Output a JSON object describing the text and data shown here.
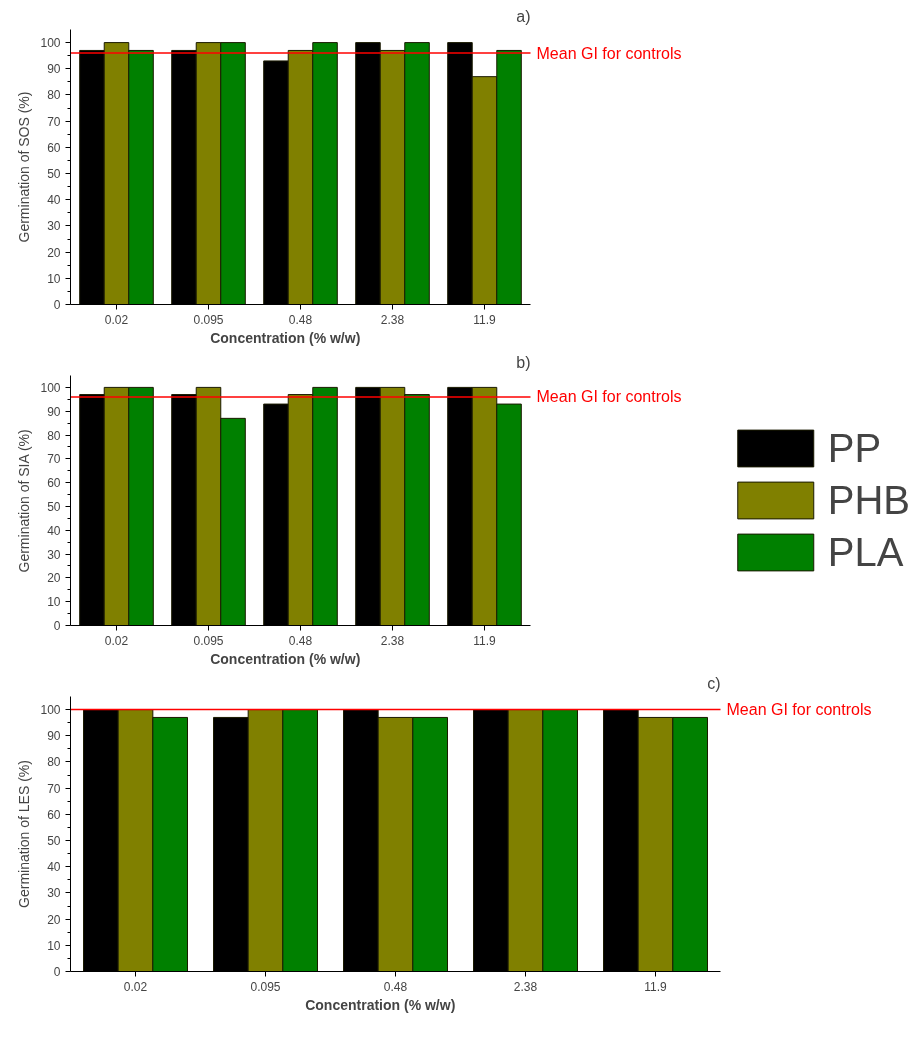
{
  "chart_data": [
    {
      "type": "bar",
      "title": "a)",
      "xlabel": "Concentration (% w/w)",
      "ylabel": "Germination of SOS (%)",
      "categories": [
        "0.02",
        "0.095",
        "0.48",
        "2.38",
        "11.9"
      ],
      "ylim": [
        0,
        105
      ],
      "yticks": [
        0,
        10,
        20,
        30,
        40,
        50,
        60,
        70,
        80,
        90,
        100
      ],
      "grid": false,
      "legend": false,
      "series": [
        {
          "color": "#000000",
          "values": [
            97,
            97,
            93,
            100,
            100
          ]
        },
        {
          "color": "#808000",
          "values": [
            100,
            100,
            97,
            97,
            87
          ]
        },
        {
          "color": "#008000",
          "values": [
            97,
            100,
            100,
            100,
            97
          ]
        }
      ],
      "ref_lines": [
        {
          "axis": "y",
          "value": 96,
          "label": "Mean GI for controls",
          "color": "#ff0000"
        }
      ]
    },
    {
      "type": "bar",
      "title": "b)",
      "xlabel": "Concentration (% w/w)",
      "ylabel": "Germination of SIA (%)",
      "categories": [
        "0.02",
        "0.095",
        "0.48",
        "2.38",
        "11.9"
      ],
      "ylim": [
        0,
        105
      ],
      "yticks": [
        0,
        10,
        20,
        30,
        40,
        50,
        60,
        70,
        80,
        90,
        100
      ],
      "grid": false,
      "legend": "right",
      "series": [
        {
          "name": "PP",
          "color": "#000000",
          "values": [
            97,
            97,
            93,
            100,
            100
          ]
        },
        {
          "name": "PHB",
          "color": "#808000",
          "values": [
            100,
            100,
            97,
            100,
            100
          ]
        },
        {
          "name": "PLA",
          "color": "#008000",
          "values": [
            100,
            87,
            100,
            97,
            93
          ]
        }
      ],
      "ref_lines": [
        {
          "axis": "y",
          "value": 96,
          "label": "Mean GI for controls",
          "color": "#ff0000"
        }
      ]
    },
    {
      "type": "bar",
      "title": "c)",
      "xlabel": "Concentration (% w/w)",
      "ylabel": "Germination of LES (%)",
      "categories": [
        "0.02",
        "0.095",
        "0.48",
        "2.38",
        "11.9"
      ],
      "ylim": [
        0,
        105
      ],
      "yticks": [
        0,
        10,
        20,
        30,
        40,
        50,
        60,
        70,
        80,
        90,
        100
      ],
      "grid": false,
      "legend": false,
      "series": [
        {
          "color": "#000000",
          "values": [
            100,
            97,
            100,
            100,
            100
          ]
        },
        {
          "color": "#808000",
          "values": [
            100,
            100,
            97,
            100,
            97
          ]
        },
        {
          "color": "#008000",
          "values": [
            97,
            100,
            97,
            100,
            97
          ]
        }
      ],
      "ref_lines": [
        {
          "axis": "y",
          "value": 100,
          "label": "Mean GI for controls",
          "color": "#ff0000"
        }
      ]
    }
  ]
}
